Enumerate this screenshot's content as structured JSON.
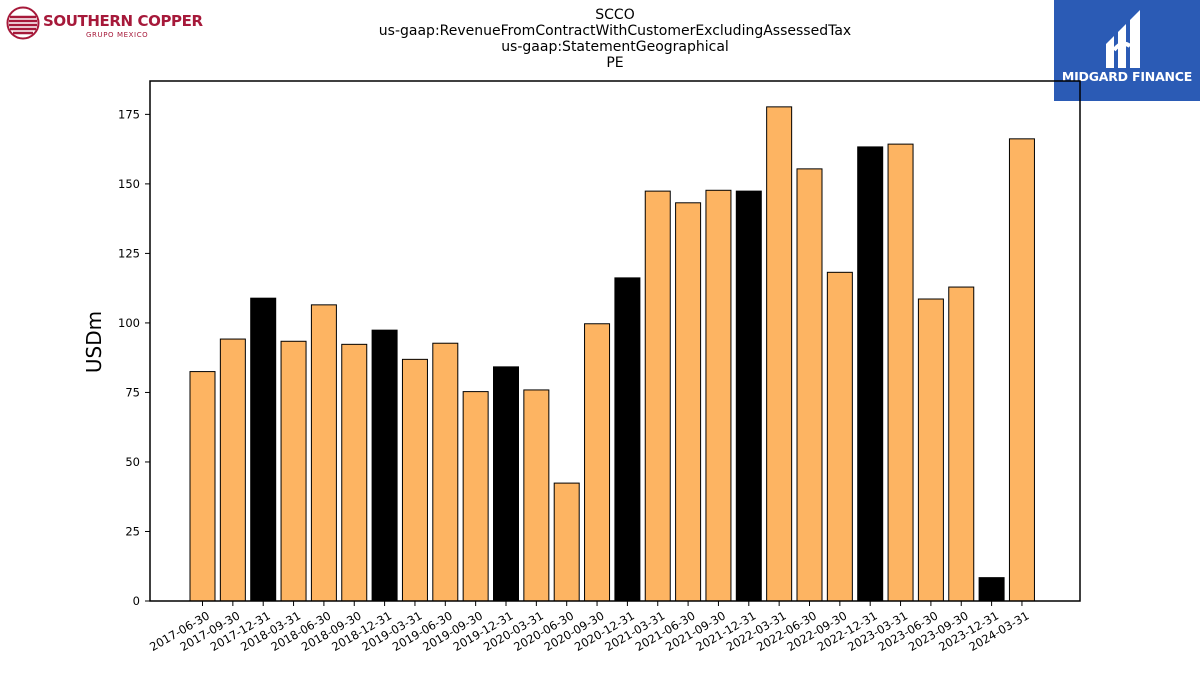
{
  "header": {
    "title_lines": [
      "SCCO",
      "us-gaap:RevenueFromContractWithCustomerExcludingAssessedTax",
      "us-gaap:StatementGeographical",
      "PE"
    ]
  },
  "logos": {
    "left": {
      "name": "SOUTHERN COPPER",
      "sub": "GRUPO MEXICO",
      "color": "#a6193a"
    },
    "right": {
      "name": "MIDGARD FINANCE",
      "background": "#2b5bb5"
    }
  },
  "chart_data": {
    "type": "bar",
    "title": "",
    "xlabel": "",
    "ylabel": "USDm",
    "ylim": [
      0,
      187
    ],
    "yticks": [
      0,
      25,
      50,
      75,
      100,
      125,
      150,
      175
    ],
    "grid": false,
    "colors": {
      "quarter": "#fdb462",
      "year_end": "#000000",
      "edge": "#000000"
    },
    "categories": [
      "2017-06-30",
      "2017-09-30",
      "2017-12-31",
      "2018-03-31",
      "2018-06-30",
      "2018-09-30",
      "2018-12-31",
      "2019-03-31",
      "2019-06-30",
      "2019-09-30",
      "2019-12-31",
      "2020-03-31",
      "2020-06-30",
      "2020-09-30",
      "2020-12-31",
      "2021-03-31",
      "2021-06-30",
      "2021-09-30",
      "2021-12-31",
      "2022-03-31",
      "2022-06-30",
      "2022-09-30",
      "2022-12-31",
      "2023-03-31",
      "2023-06-30",
      "2023-09-30",
      "2023-12-31",
      "2024-03-31"
    ],
    "values": [
      82.5,
      94.2,
      108.9,
      93.4,
      106.5,
      92.3,
      97.4,
      86.9,
      92.7,
      75.3,
      84.2,
      75.9,
      42.4,
      99.7,
      116.2,
      147.4,
      143.2,
      147.7,
      147.4,
      177.7,
      155.4,
      118.2,
      163.3,
      164.3,
      108.6,
      112.9,
      8.4,
      166.2
    ],
    "highlight": [
      false,
      false,
      true,
      false,
      false,
      false,
      true,
      false,
      false,
      false,
      true,
      false,
      false,
      false,
      true,
      false,
      false,
      false,
      true,
      false,
      false,
      false,
      true,
      false,
      false,
      false,
      true,
      false
    ]
  }
}
